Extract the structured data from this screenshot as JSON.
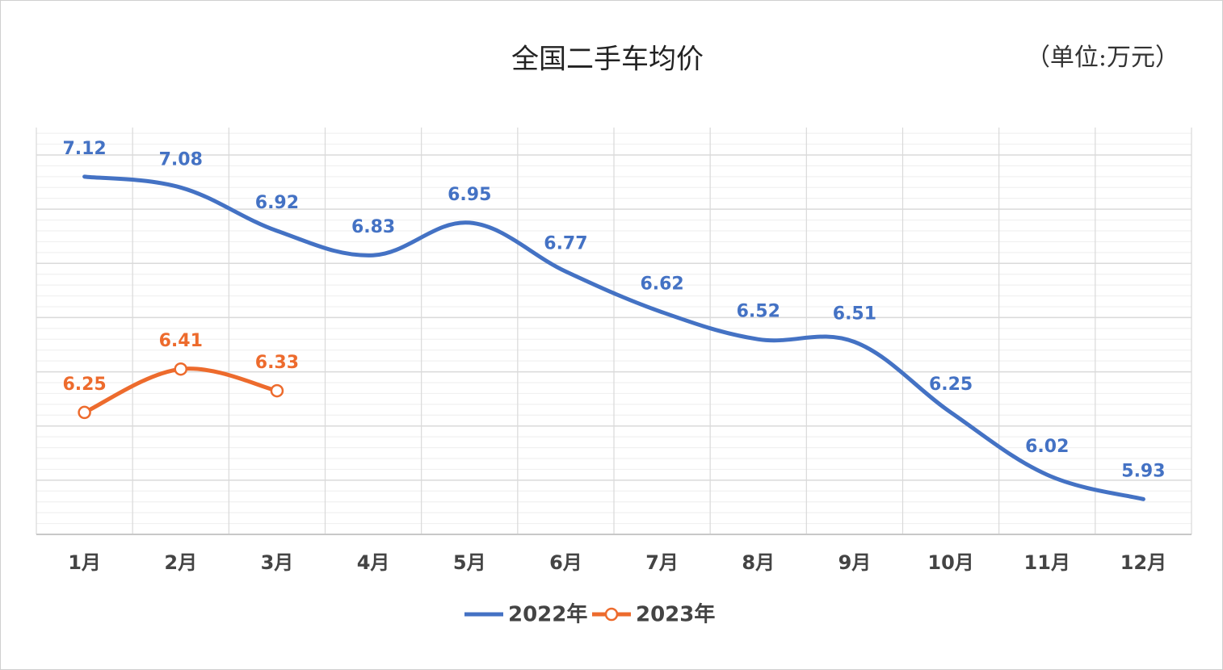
{
  "chart_data": {
    "type": "line",
    "title": "全国二手车均价",
    "subtitle": "（单位:万元）",
    "categories": [
      "1月",
      "2月",
      "3月",
      "4月",
      "5月",
      "6月",
      "7月",
      "8月",
      "9月",
      "10月",
      "11月",
      "12月"
    ],
    "series": [
      {
        "name": "2022年",
        "color": "#4472c4",
        "marker": false,
        "values": [
          7.12,
          7.08,
          6.92,
          6.83,
          6.95,
          6.77,
          6.62,
          6.52,
          6.51,
          6.25,
          6.02,
          5.93
        ]
      },
      {
        "name": "2023年",
        "color": "#ed6b2d",
        "marker": true,
        "values": [
          6.25,
          6.41,
          6.33,
          null,
          null,
          null,
          null,
          null,
          null,
          null,
          null,
          null
        ]
      }
    ],
    "ylim": [
      5.8,
      7.2
    ],
    "yticks": [
      5.8,
      6,
      6.2,
      6.4,
      6.6,
      6.8,
      7,
      7.2
    ],
    "grid": true,
    "legend": "bottom"
  }
}
